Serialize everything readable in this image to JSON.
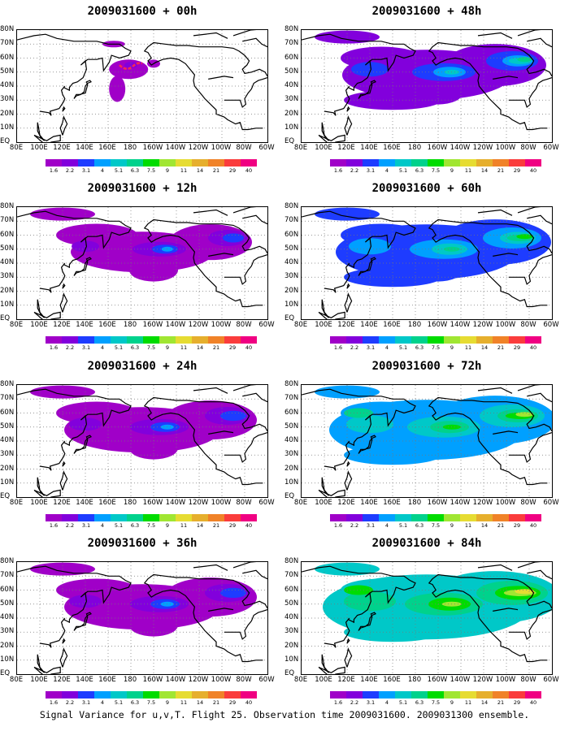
{
  "panels": [
    {
      "title": "2009031600 + 00h",
      "level": 0
    },
    {
      "title": "2009031600 + 48h",
      "level": 3
    },
    {
      "title": "2009031600 + 12h",
      "level": 1
    },
    {
      "title": "2009031600 + 60h",
      "level": 4
    },
    {
      "title": "2009031600 + 24h",
      "level": 2
    },
    {
      "title": "2009031600 + 72h",
      "level": 5
    },
    {
      "title": "2009031600 + 36h",
      "level": 2
    },
    {
      "title": "2009031600 + 84h",
      "level": 6
    }
  ],
  "lat_labels": [
    "80N",
    "70N",
    "60N",
    "50N",
    "40N",
    "30N",
    "20N",
    "10N",
    "EQ"
  ],
  "lon_labels": [
    "80E",
    "100E",
    "120E",
    "140E",
    "160E",
    "180",
    "160W",
    "140W",
    "120W",
    "100W",
    "80W",
    "60W"
  ],
  "colorbar": {
    "labels": [
      "1.6",
      "2.2",
      "3.1",
      "4",
      "5.1",
      "6.3",
      "7.5",
      "9",
      "11",
      "14",
      "21",
      "29",
      "40"
    ],
    "colors": [
      "#a000c8",
      "#8200dc",
      "#1e3cff",
      "#00a0ff",
      "#00c8c8",
      "#00d28c",
      "#00dc00",
      "#a0e632",
      "#e6dc32",
      "#e6af2d",
      "#f08228",
      "#fa3c3c",
      "#f00082"
    ]
  },
  "caption": "Signal Variance for u,v,T. Flight 25. Observation time 2009031600. 2009031300 ensemble."
}
